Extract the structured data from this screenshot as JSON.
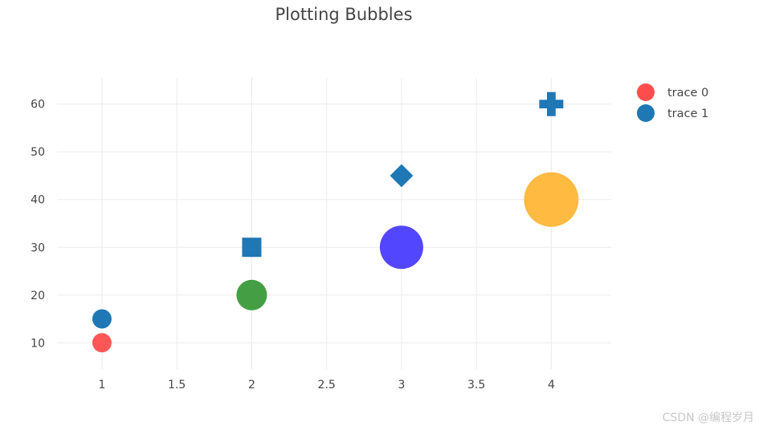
{
  "chart_data": {
    "type": "scatter",
    "title": "Plotting Bubbles",
    "xlabel": "",
    "ylabel": "",
    "xlim": [
      0.7,
      4.4
    ],
    "ylim": [
      4.5,
      65.5
    ],
    "xticks": [
      1,
      1.5,
      2,
      2.5,
      3,
      3.5,
      4
    ],
    "xtick_labels": [
      "1",
      "1.5",
      "2",
      "2.5",
      "3",
      "3.5",
      "4"
    ],
    "yticks": [
      10,
      20,
      30,
      40,
      50,
      60
    ],
    "ytick_labels": [
      "10",
      "20",
      "30",
      "40",
      "50",
      "60"
    ],
    "grid": true,
    "legend_position": "top-right",
    "series": [
      {
        "name": "trace 0",
        "legend_color": "#ff4d4d",
        "points": [
          {
            "x": 1,
            "y": 10,
            "color": "#ff4d4d",
            "symbol": "circle",
            "size": 12
          },
          {
            "x": 2,
            "y": 20,
            "color": "#3a9a3a",
            "symbol": "circle",
            "size": 19
          },
          {
            "x": 3,
            "y": 30,
            "color": "#4a3cff",
            "symbol": "circle",
            "size": 27
          },
          {
            "x": 4,
            "y": 40,
            "color": "#ffb638",
            "symbol": "circle",
            "size": 34
          }
        ]
      },
      {
        "name": "trace 1",
        "legend_color": "#1f77b4",
        "points": [
          {
            "x": 1,
            "y": 15,
            "color": "#1f77b4",
            "symbol": "circle",
            "size": 12
          },
          {
            "x": 2,
            "y": 30,
            "color": "#1f77b4",
            "symbol": "square",
            "size": 12
          },
          {
            "x": 3,
            "y": 45,
            "color": "#1f77b4",
            "symbol": "diamond",
            "size": 12
          },
          {
            "x": 4,
            "y": 60,
            "color": "#1f77b4",
            "symbol": "cross",
            "size": 12
          }
        ]
      }
    ]
  },
  "watermark": "CSDN @编程岁月"
}
